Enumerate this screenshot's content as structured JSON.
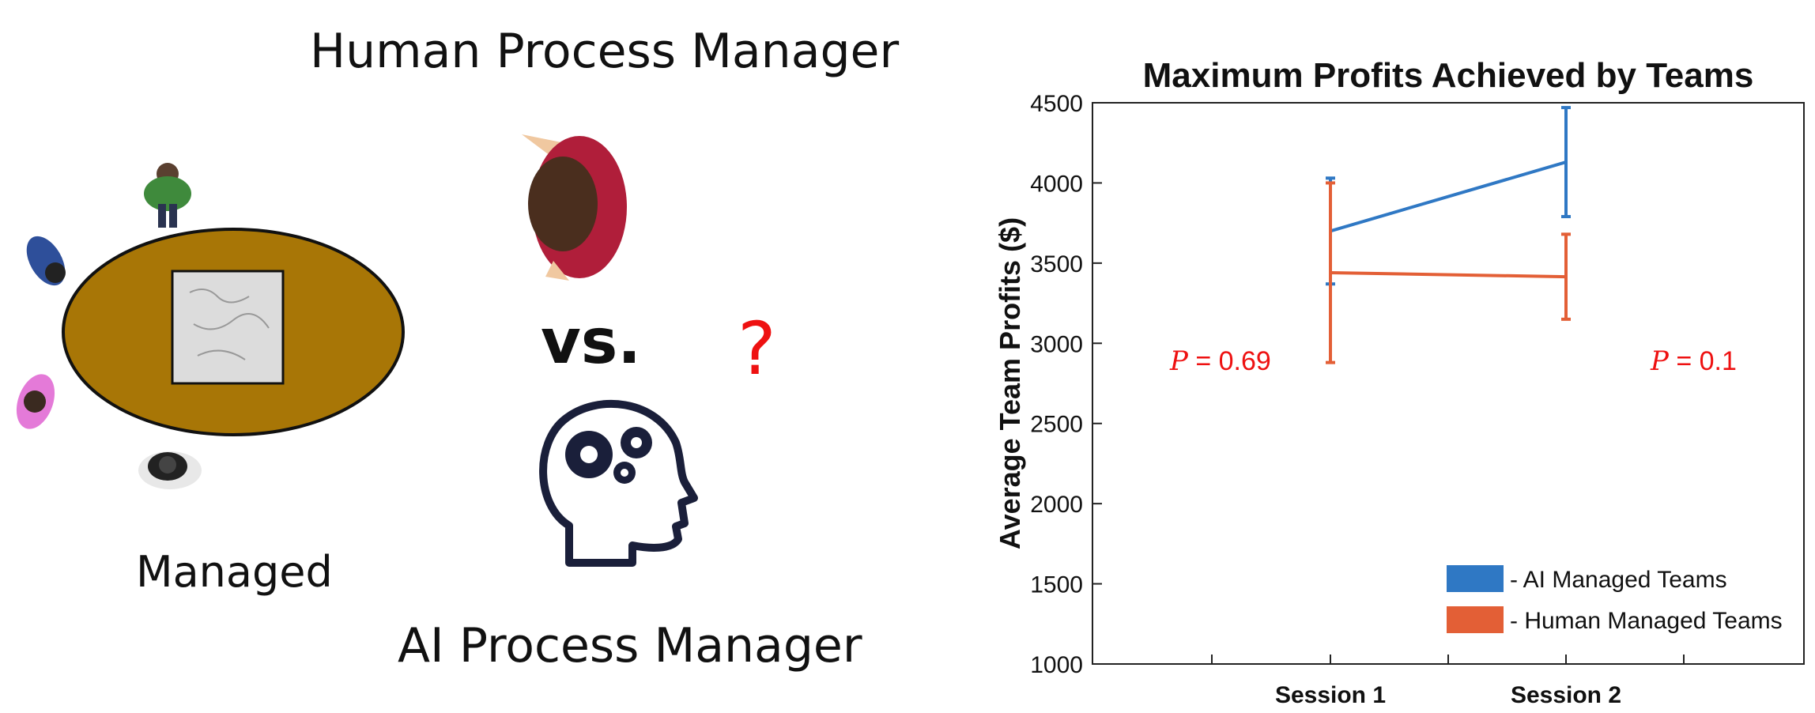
{
  "left_panel": {
    "human_title": "Human Process Manager",
    "ai_title": "AI Process Manager",
    "managed_label": "Managed",
    "vs_label": "vs.",
    "question_mark": "?",
    "icons": [
      "meeting-table-icon",
      "person-icon",
      "human-manager-icon",
      "ai-brain-gears-icon"
    ]
  },
  "chart_data": {
    "type": "line",
    "title": "Maximum Profits Achieved by Teams",
    "ylabel": "Average Team Profits ($)",
    "xlabel": "",
    "categories": [
      "Session 1",
      "Session 2"
    ],
    "ylim": [
      1000,
      4500
    ],
    "yticks": [
      1000,
      1500,
      2000,
      2500,
      3000,
      3500,
      4000,
      4500
    ],
    "grid": false,
    "legend_position": "bottom-right",
    "series": [
      {
        "name": "- AI Managed Teams",
        "color": "#2f78c4",
        "values": [
          3700,
          4130
        ],
        "err_low": [
          3370,
          3790
        ],
        "err_high": [
          4030,
          4470
        ]
      },
      {
        "name": "- Human Managed Teams",
        "color": "#e35f36",
        "values": [
          3440,
          3415
        ],
        "err_low": [
          2880,
          3150
        ],
        "err_high": [
          4000,
          3680
        ]
      }
    ],
    "annotations": [
      {
        "prefix": "P",
        "text": " =  0.69",
        "color": "#ee1111",
        "position": "left of Session 1"
      },
      {
        "prefix": "P",
        "text": " =  0.1",
        "color": "#ee1111",
        "position": "right of Session 2"
      }
    ]
  }
}
